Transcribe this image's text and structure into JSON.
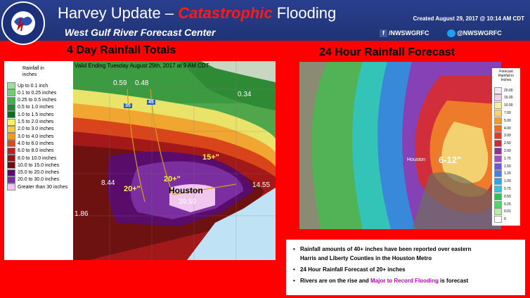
{
  "header": {
    "title_prefix": "Harvey Update – ",
    "title_highlight": "Catastrophic",
    "title_suffix": " Flooding",
    "subtitle": "West Gulf River Forecast Center",
    "created": "Created August  29, 2017 @ 10:14 AM CDT",
    "facebook": "/NWSWGRFC",
    "twitter": "@NWSWGRFC",
    "logo_text": "NATIONAL WEATHER SERVICE"
  },
  "left_panel": {
    "title": "4 Day Rainfall Totals",
    "valid_text": "Valid Ending Tuesday August 29th, 2017 at 9 AM CDT",
    "legend_title": [
      "Rainfall in",
      "inches"
    ],
    "legend": [
      {
        "label": "Up to 0.1 inch",
        "color": "#9be09a"
      },
      {
        "label": "0.1 to 0.25 inches",
        "color": "#72cf6f"
      },
      {
        "label": "0.25 to 0.5 inches",
        "color": "#3fb04a"
      },
      {
        "label": "0.5 to 1.0 inches",
        "color": "#1d8a2f"
      },
      {
        "label": "1.0 to 1.5 inches",
        "color": "#0f6a20"
      },
      {
        "label": "1.5 to 2.0 inches",
        "color": "#f4f36a"
      },
      {
        "label": "2.0 to 3.0 inches",
        "color": "#f5c842"
      },
      {
        "label": "3.0 to 4.0 inches",
        "color": "#f09a2a"
      },
      {
        "label": "4.0 to 6.0 inches",
        "color": "#e0481b"
      },
      {
        "label": "6.0 to 8.0 inches",
        "color": "#c51e1e"
      },
      {
        "label": "8.0 to 10.0 inches",
        "color": "#8f1414"
      },
      {
        "label": "10.0 to 15.0 inches",
        "color": "#6b0f0f"
      },
      {
        "label": "15.0 to 20.0 inches",
        "color": "#5c0b6e"
      },
      {
        "label": "20.0 to 30.0 inches",
        "color": "#7a2d9e"
      },
      {
        "label": "Greater than 30 inches",
        "color": "#f2c7ef"
      }
    ],
    "labels": {
      "v059": "0.59",
      "v048": "0.48",
      "v034": "0.34",
      "v844": "8.44",
      "v20a": "20+\"",
      "v20b": "20+\"",
      "v15": "15+\"",
      "houston": "Houston",
      "v3959": "39.59",
      "v1455": "14.55",
      "v186": "1.86",
      "i35": "35",
      "i45": "45"
    }
  },
  "right_panel": {
    "title": "24 Hour Rainfall Forecast",
    "legend_title": [
      "Forecast",
      "Rainfall in",
      "Inches"
    ],
    "legend": [
      {
        "label": "20.00",
        "color": "#f6e8f2"
      },
      {
        "label": "15.00",
        "color": "#ecd1e9"
      },
      {
        "label": "10.00",
        "color": "#f5f0a0"
      },
      {
        "label": "7.00",
        "color": "#f8d36f"
      },
      {
        "label": "5.00",
        "color": "#f39b2e"
      },
      {
        "label": "4.00",
        "color": "#ef6a2a"
      },
      {
        "label": "3.00",
        "color": "#e23a2f"
      },
      {
        "label": "2.50",
        "color": "#c82b3a"
      },
      {
        "label": "2.00",
        "color": "#8e2fa0"
      },
      {
        "label": "1.75",
        "color": "#a24fc0"
      },
      {
        "label": "1.50",
        "color": "#6a5acd"
      },
      {
        "label": "1.25",
        "color": "#4c7ee0"
      },
      {
        "label": "1.00",
        "color": "#2ea6e6"
      },
      {
        "label": "0.75",
        "color": "#37c4d6"
      },
      {
        "label": "0.50",
        "color": "#2fbf5a"
      },
      {
        "label": "0.25",
        "color": "#53d46e"
      },
      {
        "label": "0.01",
        "color": "#b6ef9e"
      },
      {
        "label": "0",
        "color": "#ffffff"
      }
    ],
    "labels": {
      "houston": "Houston",
      "band": "6-12\""
    }
  },
  "bullets": [
    {
      "text": "Rainfall amounts of 40+ inches have been reported over eastern"
    },
    {
      "text": "Harris and Liberty Counties in the Houston Metro"
    },
    {
      "text": "24 Hour Rainfall Forecast of 20+ inches"
    },
    {
      "prefix": "Rivers are on the rise and ",
      "highlight": "Major to Record Flooding",
      "suffix": " is forecast"
    }
  ]
}
